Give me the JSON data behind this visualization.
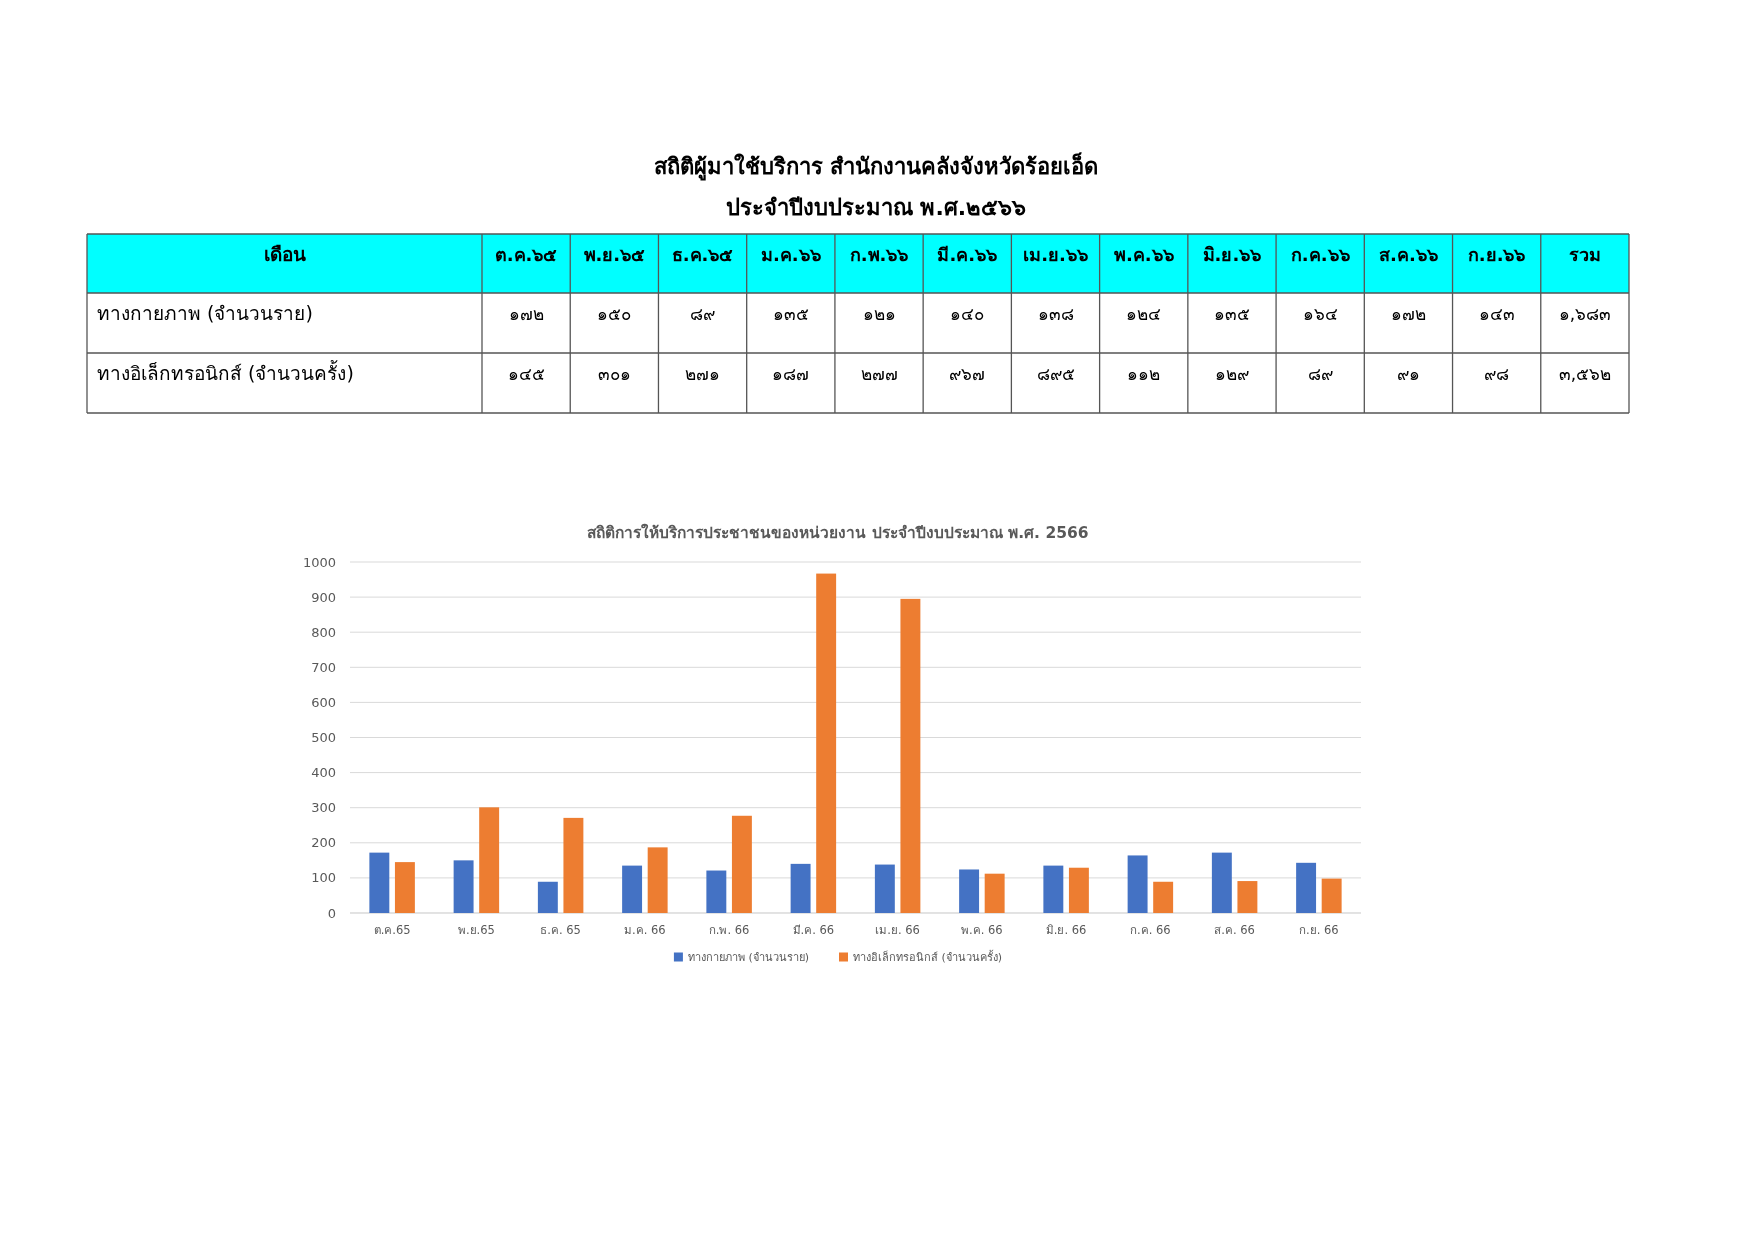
{
  "chart_data": [
    {
      "type": "other",
      "title": "สถิติผู้มาใช้บริการ สำนักงานคลังจังหวัดร้อยเอ็ด",
      "subtitle": "ประจำปีงบประมาณ พ.ศ.๒๕๖๖",
      "xlabel": "เดือน",
      "categories": [
        "ต.ค.๖๕",
        "พ.ย.๖๕",
        "ธ.ค.๖๕",
        "ม.ค.๖๖",
        "ก.พ.๖๖",
        "มี.ค.๖๖",
        "เม.ย.๖๖",
        "พ.ค.๖๖",
        "มิ.ย.๖๖",
        "ก.ค.๖๖",
        "ส.ค.๖๖",
        "ก.ย.๖๖",
        "รวม"
      ],
      "series": [
        {
          "name": "ทางกายภาพ (จำนวนราย)",
          "values": [
            172,
            150,
            89,
            135,
            121,
            140,
            138,
            124,
            135,
            164,
            172,
            143,
            1683
          ],
          "value_labels": [
            "๑๗๒",
            "๑๕๐",
            "๘๙",
            "๑๓๕",
            "๑๒๑",
            "๑๔๐",
            "๑๓๘",
            "๑๒๔",
            "๑๓๕",
            "๑๖๔",
            "๑๗๒",
            "๑๔๓",
            "๑,๖๘๓"
          ]
        },
        {
          "name": "ทางอิเล็กทรอนิกส์ (จำนวนครั้ง)",
          "values": [
            145,
            301,
            271,
            187,
            277,
            967,
            895,
            112,
            129,
            89,
            91,
            98,
            3562
          ],
          "value_labels": [
            "๑๔๕",
            "๓๐๑",
            "๒๗๑",
            "๑๘๗",
            "๒๗๗",
            "๙๖๗",
            "๘๙๕",
            "๑๑๒",
            "๑๒๙",
            "๘๙",
            "๙๑",
            "๙๘",
            "๓,๕๖๒"
          ]
        }
      ]
    },
    {
      "type": "bar",
      "title": "สถิติการให้บริการประชาชนของหน่วยงาน ประจำปีงบประมาณ พ.ศ. 2566",
      "categories": [
        "ต.ค.65",
        "พ.ย.65",
        "ธ.ค. 65",
        "ม.ค. 66",
        "ก.พ. 66",
        "มี.ค. 66",
        "เม.ย. 66",
        "พ.ค. 66",
        "มิ.ย. 66",
        "ก.ค. 66",
        "ส.ค. 66",
        "ก.ย. 66"
      ],
      "series": [
        {
          "name": "ทางกายภาพ (จำนวนราย)",
          "color": "#4472c4",
          "values": [
            172,
            150,
            89,
            135,
            121,
            140,
            138,
            124,
            135,
            164,
            172,
            143
          ]
        },
        {
          "name": "ทางอิเล็กทรอนิกส์ (จำนวนครั้ง)",
          "color": "#ed7d31",
          "values": [
            145,
            301,
            271,
            187,
            277,
            967,
            895,
            112,
            129,
            89,
            91,
            98
          ]
        }
      ],
      "ylim": [
        0,
        1000
      ],
      "yticks": [
        0,
        100,
        200,
        300,
        400,
        500,
        600,
        700,
        800,
        900,
        1000
      ],
      "grid": "y",
      "legend": "bottom"
    }
  ]
}
